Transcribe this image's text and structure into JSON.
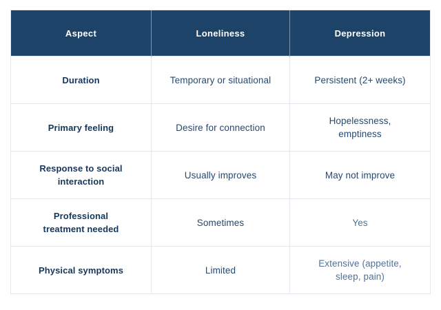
{
  "table": {
    "title": "loneliness-vs-depression-comparison",
    "colors": {
      "header_background": "#1d4468",
      "header_text": "#ffffff",
      "row_label_text": "#16365c",
      "cell_text": "#26496e",
      "cell_text_muted": "#51719a",
      "grid_border": "#e3e8ee"
    },
    "columns": {
      "aspect": "Aspect",
      "loneliness": "Loneliness",
      "depression": "Depression"
    },
    "rows": [
      {
        "aspect": "Duration",
        "loneliness": "Temporary or situational",
        "depression": "Persistent (2+ weeks)"
      },
      {
        "aspect": "Primary feeling",
        "loneliness": "Desire for connection",
        "depression": "Hopelessness, emptiness"
      },
      {
        "aspect": "Response to social interaction",
        "loneliness": "Usually improves",
        "depression": "May not improve"
      },
      {
        "aspect": "Professional treatment needed",
        "loneliness": "Sometimes",
        "depression": "Yes"
      },
      {
        "aspect": "Physical symptoms",
        "loneliness": "Limited",
        "depression": "Extensive (appetite, sleep, pain)"
      }
    ]
  }
}
